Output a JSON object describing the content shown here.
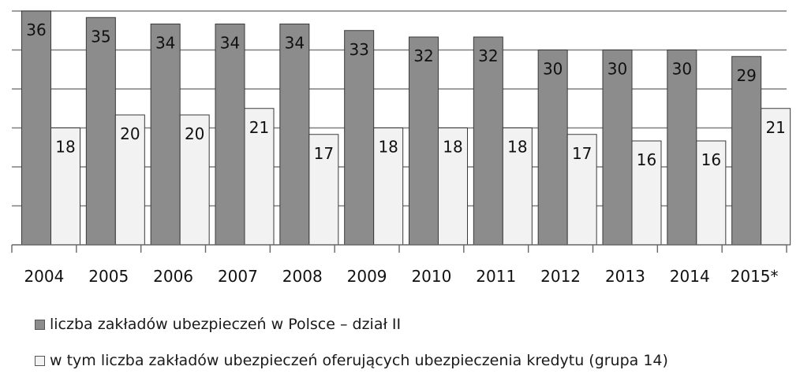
{
  "chart_data": {
    "type": "bar",
    "categories": [
      "2004",
      "2005",
      "2006",
      "2007",
      "2008",
      "2009",
      "2010",
      "2011",
      "2012",
      "2013",
      "2014",
      "2015*"
    ],
    "series": [
      {
        "name": "liczba zakładów ubezpieczeń w Polsce – dział II",
        "values": [
          36,
          35,
          34,
          34,
          34,
          33,
          32,
          32,
          30,
          30,
          30,
          29
        ],
        "color": "#8c8c8c"
      },
      {
        "name": "w tym liczba zakładów ubezpieczeń oferujących ubezpieczenia kredytu (grupa 14)",
        "values": [
          18,
          20,
          20,
          21,
          17,
          18,
          18,
          18,
          17,
          16,
          16,
          21
        ],
        "color": "#f2f2f2"
      }
    ],
    "ylim": [
      0,
      36
    ],
    "grid": true,
    "legend_position": "bottom"
  }
}
